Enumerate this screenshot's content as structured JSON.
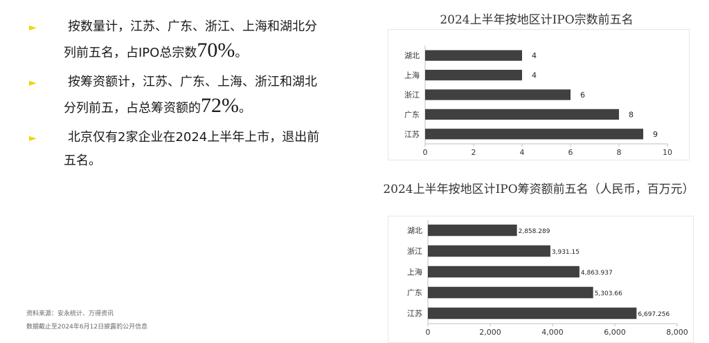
{
  "bullets": [
    {
      "pre": "按数量计，江苏、广东、浙江、上海和湖北分列前五名，占IPO总宗数",
      "big": "70%",
      "post": "。"
    },
    {
      "pre": "按筹资额计，江苏、广东、上海、浙江和湖北分列前五，占总筹资额的",
      "big": "72%",
      "post": "。"
    },
    {
      "pre": "北京仅有2家企业在2024上半年上市，退出前五名。",
      "big": "",
      "post": ""
    }
  ],
  "source": {
    "line1": "资料来源：安永统计、万得资讯",
    "line2": "数据截止至2024年6月12日披露的公开信息"
  },
  "colors": {
    "bar": "#404040",
    "bullet": "#f2d300"
  },
  "chart_data": [
    {
      "type": "bar",
      "orientation": "horizontal",
      "title": "2024上半年按地区计IPO宗数前五名",
      "categories": [
        "湖北",
        "上海",
        "浙江",
        "广东",
        "江苏"
      ],
      "values": [
        4,
        4,
        6,
        8,
        9
      ],
      "value_labels": [
        "4",
        "4",
        "6",
        "8",
        "9"
      ],
      "xlim": [
        0,
        10
      ],
      "xticks": [
        "0",
        "2",
        "4",
        "6",
        "8",
        "10"
      ],
      "grid": false
    },
    {
      "type": "bar",
      "orientation": "horizontal",
      "title": "2024上半年按地区计IPO筹资额前五名（人民币，百万元）",
      "categories": [
        "湖北",
        "浙江",
        "上海",
        "广东",
        "江苏"
      ],
      "values": [
        2858.289,
        3931.15,
        4863.937,
        5303.66,
        6697.256
      ],
      "value_labels": [
        "2,858.289",
        "3,931.15",
        "4,863.937",
        "5,303.66",
        "6,697.256"
      ],
      "xlim": [
        0,
        8000
      ],
      "xticks": [
        "0",
        "2,000",
        "4,000",
        "6,000",
        "8,000"
      ],
      "grid": false
    }
  ]
}
